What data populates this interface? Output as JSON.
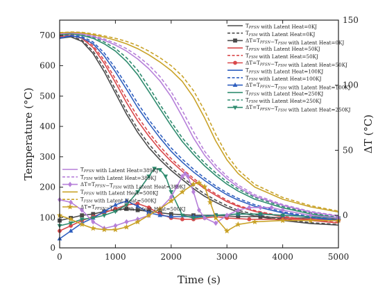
{
  "chart_data": {
    "type": "line",
    "xlabel": "Time (s)",
    "ylabel": "Temperature (°C)",
    "y2label": "ΔT (°C)",
    "xlim": [
      0,
      5000
    ],
    "ylim": [
      0,
      750
    ],
    "y2lim": [
      -25,
      150
    ],
    "xticks": [
      0,
      1000,
      2000,
      3000,
      4000,
      5000
    ],
    "yticks": [
      0,
      100,
      200,
      300,
      400,
      500,
      600,
      700
    ],
    "y2ticks": [
      0,
      50,
      100,
      150
    ],
    "grid": false,
    "legend_positions": [
      "top-right",
      "left-middle"
    ],
    "series": [
      {
        "name": "T_PFSN with Latent Heat=0KJ",
        "axis": "left",
        "style": "solid",
        "marker": "none",
        "color": "#4a4a4a",
        "x": [
          0,
          200,
          400,
          600,
          800,
          1000,
          1200,
          1400,
          1600,
          1800,
          2000,
          2200,
          2400,
          2600,
          2800,
          3000,
          3200,
          3500,
          4000,
          4500,
          5000
        ],
        "y": [
          690,
          695,
          680,
          640,
          580,
          510,
          440,
          380,
          330,
          290,
          255,
          225,
          195,
          170,
          150,
          132,
          118,
          105,
          90,
          80,
          75
        ]
      },
      {
        "name": "T_FSM with Latent Heat=0KJ",
        "axis": "left",
        "style": "dash",
        "marker": "none",
        "color": "#4a4a4a",
        "x": [
          0,
          200,
          400,
          600,
          800,
          1000,
          1200,
          1400,
          1600,
          1800,
          2000,
          2200,
          2400,
          2600,
          2800,
          3000,
          3200,
          3500,
          4000,
          4500,
          5000
        ],
        "y": [
          692,
          697,
          684,
          648,
          592,
          522,
          452,
          392,
          342,
          300,
          264,
          233,
          203,
          178,
          157,
          139,
          124,
          110,
          94,
          83,
          77
        ]
      },
      {
        "name": "ΔT=T_PFSN−T_FSM with Latent Heat=0KJ",
        "axis": "right",
        "style": "solid",
        "marker": "square",
        "color": "#4a4a4a",
        "x": [
          0,
          200,
          400,
          600,
          800,
          1000,
          1200,
          1400,
          1600,
          1800,
          2000,
          2400,
          2800,
          3200,
          3600,
          4000,
          4500,
          5000
        ],
        "y": [
          -4,
          -2,
          0,
          1,
          3,
          4,
          5,
          4,
          3,
          2,
          1,
          0,
          0,
          -1,
          -1,
          -2,
          -2,
          -3
        ]
      },
      {
        "name": "T_PFSN with Latent Heat=50KJ",
        "axis": "left",
        "style": "solid",
        "marker": "none",
        "color": "#d9484a",
        "x": [
          0,
          200,
          400,
          600,
          800,
          1000,
          1200,
          1400,
          1600,
          1800,
          2000,
          2200,
          2400,
          2600,
          2800,
          3000,
          3200,
          3500,
          4000,
          4500,
          5000
        ],
        "y": [
          695,
          700,
          690,
          660,
          608,
          545,
          478,
          418,
          368,
          323,
          285,
          252,
          222,
          195,
          173,
          152,
          137,
          120,
          102,
          90,
          82
        ]
      },
      {
        "name": "T_FSM with Latent Heat=50KJ",
        "axis": "left",
        "style": "dash",
        "marker": "none",
        "color": "#d9484a",
        "x": [
          0,
          200,
          400,
          600,
          800,
          1000,
          1200,
          1400,
          1600,
          1800,
          2000,
          2200,
          2400,
          2600,
          2800,
          3000,
          3200,
          3500,
          4000,
          4500,
          5000
        ],
        "y": [
          697,
          702,
          694,
          666,
          618,
          557,
          492,
          432,
          380,
          334,
          294,
          260,
          229,
          201,
          178,
          157,
          140,
          123,
          104,
          92,
          84
        ]
      },
      {
        "name": "ΔT=T_PFSN−T_FSM with Latent Heat=50KJ",
        "axis": "right",
        "style": "solid",
        "marker": "circle",
        "color": "#d9484a",
        "x": [
          0,
          200,
          400,
          600,
          800,
          1000,
          1200,
          1400,
          1600,
          1800,
          2000,
          2200,
          2400,
          2600,
          2800,
          3000,
          3400,
          4000,
          4500,
          5000
        ],
        "y": [
          -12,
          -8,
          -4,
          -1,
          2,
          5,
          8,
          9,
          6,
          1,
          -2,
          -3,
          -3,
          -2,
          -1,
          -2,
          -3,
          -3,
          -3,
          -4
        ]
      },
      {
        "name": "T_PFSN with Latent Heat=100KJ",
        "axis": "left",
        "style": "solid",
        "marker": "none",
        "color": "#2f5fbf",
        "x": [
          0,
          200,
          400,
          600,
          800,
          1000,
          1200,
          1400,
          1600,
          1800,
          2000,
          2200,
          2400,
          2600,
          2800,
          3000,
          3200,
          3500,
          4000,
          4500,
          5000
        ],
        "y": [
          690,
          698,
          692,
          672,
          632,
          580,
          522,
          462,
          410,
          362,
          318,
          282,
          250,
          222,
          197,
          175,
          157,
          137,
          115,
          100,
          90
        ]
      },
      {
        "name": "T_FSM with Latent Heat=100KJ",
        "axis": "left",
        "style": "dash",
        "marker": "none",
        "color": "#2f5fbf",
        "x": [
          0,
          200,
          400,
          600,
          800,
          1000,
          1200,
          1400,
          1600,
          1800,
          2000,
          2200,
          2400,
          2600,
          2800,
          3000,
          3200,
          3500,
          4000,
          4500,
          5000
        ],
        "y": [
          692,
          700,
          696,
          678,
          642,
          592,
          536,
          476,
          422,
          374,
          329,
          292,
          259,
          230,
          204,
          181,
          163,
          142,
          119,
          103,
          92
        ]
      },
      {
        "name": "ΔT=T_PFSN−T_FSM with Latent Heat=100KJ",
        "axis": "right",
        "style": "solid",
        "marker": "triangle",
        "color": "#2f5fbf",
        "x": [
          0,
          200,
          400,
          600,
          800,
          1000,
          1200,
          1400,
          1600,
          1800,
          2000,
          2400,
          2800,
          3200,
          3600,
          4000,
          4500,
          5000
        ],
        "y": [
          -18,
          -12,
          -6,
          -2,
          3,
          8,
          11,
          7,
          2,
          0,
          -1,
          -1,
          0,
          1,
          1,
          0,
          -1,
          -2
        ]
      },
      {
        "name": "T_PFSN with Latent Heat=250KJ",
        "axis": "left",
        "style": "solid",
        "marker": "none",
        "color": "#2e8b6e",
        "x": [
          0,
          200,
          400,
          600,
          800,
          1000,
          1200,
          1400,
          1600,
          1800,
          2000,
          2200,
          2400,
          2600,
          2800,
          3000,
          3200,
          3500,
          4000,
          4500,
          5000
        ],
        "y": [
          700,
          705,
          700,
          690,
          672,
          648,
          614,
          570,
          515,
          458,
          402,
          350,
          308,
          270,
          238,
          210,
          187,
          160,
          132,
          112,
          98
        ]
      },
      {
        "name": "T_FSM with Latent Heat=250KJ",
        "axis": "left",
        "style": "dash",
        "marker": "none",
        "color": "#2e8b6e",
        "x": [
          0,
          200,
          400,
          600,
          800,
          1000,
          1200,
          1400,
          1600,
          1800,
          2000,
          2200,
          2400,
          2600,
          2800,
          3000,
          3200,
          3500,
          4000,
          4500,
          5000
        ],
        "y": [
          701,
          706,
          702,
          694,
          678,
          657,
          626,
          585,
          530,
          472,
          415,
          362,
          319,
          280,
          247,
          218,
          194,
          166,
          136,
          115,
          100
        ]
      },
      {
        "name": "ΔT=T_PFSN−T_FSM with Latent Heat=250KJ",
        "axis": "right",
        "style": "solid",
        "marker": "triangle-down",
        "color": "#2e8b6e",
        "x": [
          0,
          200,
          400,
          600,
          800,
          1000,
          1200,
          1400,
          1600,
          1700,
          1800,
          1900,
          2000,
          2200,
          2400,
          2600,
          2800,
          3200,
          3600,
          4000,
          4500,
          5000
        ],
        "y": [
          -8,
          -6,
          -3,
          -2,
          0,
          3,
          8,
          18,
          30,
          36,
          35,
          30,
          18,
          0,
          -2,
          -1,
          0,
          1,
          1,
          0,
          -1,
          -2
        ]
      },
      {
        "name": "T_PFSN with Latent Heat=389KJ",
        "axis": "left",
        "style": "solid",
        "marker": "none",
        "color": "#b67fd9",
        "x": [
          0,
          200,
          400,
          600,
          800,
          1000,
          1200,
          1400,
          1600,
          1800,
          2000,
          2200,
          2400,
          2600,
          2800,
          3000,
          3200,
          3500,
          4000,
          4500,
          5000
        ],
        "y": [
          705,
          708,
          704,
          696,
          684,
          668,
          648,
          622,
          590,
          550,
          498,
          432,
          362,
          305,
          262,
          228,
          200,
          170,
          140,
          118,
          104
        ]
      },
      {
        "name": "T_FSM with Latent Heat=389KJ",
        "axis": "left",
        "style": "dash",
        "marker": "none",
        "color": "#b67fd9",
        "x": [
          0,
          200,
          400,
          600,
          800,
          1000,
          1200,
          1400,
          1600,
          1800,
          2000,
          2200,
          2400,
          2600,
          2800,
          3000,
          3200,
          3500,
          4000,
          4500,
          5000
        ],
        "y": [
          706,
          709,
          706,
          699,
          688,
          674,
          656,
          632,
          602,
          564,
          514,
          452,
          382,
          318,
          272,
          236,
          207,
          175,
          143,
          120,
          106
        ]
      },
      {
        "name": "ΔT=T_PFSN−T_FSM with Latent Heat=389KJ",
        "axis": "right",
        "style": "solid",
        "marker": "diamond",
        "color": "#b67fd9",
        "x": [
          0,
          200,
          400,
          600,
          800,
          1000,
          1200,
          1400,
          1600,
          1800,
          2000,
          2100,
          2200,
          2250,
          2300,
          2400,
          2500,
          2600,
          2800,
          3000,
          3200,
          3400,
          3600,
          3800,
          4000,
          4500,
          5000
        ],
        "y": [
          12,
          10,
          4,
          -5,
          -10,
          -8,
          -5,
          -3,
          0,
          5,
          14,
          22,
          30,
          32,
          30,
          18,
          4,
          -2,
          -6,
          0,
          4,
          6,
          6,
          6,
          4,
          0,
          -2
        ]
      },
      {
        "name": "T_PFSN with Latent Heat=500KJ",
        "axis": "left",
        "style": "solid",
        "marker": "none",
        "color": "#c9a227",
        "x": [
          0,
          200,
          400,
          600,
          800,
          1000,
          1200,
          1400,
          1600,
          1800,
          2000,
          2200,
          2400,
          2600,
          2800,
          3000,
          3200,
          3500,
          4000,
          4500,
          5000
        ],
        "y": [
          708,
          710,
          708,
          702,
          694,
          684,
          672,
          656,
          636,
          612,
          584,
          548,
          496,
          428,
          352,
          290,
          245,
          200,
          160,
          135,
          118
        ]
      },
      {
        "name": "T_FSM with Latent Heat=500KJ",
        "axis": "left",
        "style": "dash",
        "marker": "none",
        "color": "#c9a227",
        "x": [
          0,
          200,
          400,
          600,
          800,
          1000,
          1200,
          1400,
          1600,
          1800,
          2000,
          2200,
          2400,
          2600,
          2800,
          3000,
          3200,
          3500,
          4000,
          4500,
          5000
        ],
        "y": [
          709,
          711,
          710,
          705,
          698,
          690,
          680,
          666,
          648,
          626,
          600,
          566,
          518,
          452,
          374,
          306,
          257,
          209,
          166,
          139,
          121
        ]
      },
      {
        "name": "ΔT=T_PFSN−T_FSM with Latent Heat=500KJ",
        "axis": "right",
        "style": "solid",
        "marker": "star",
        "color": "#c9a227",
        "x": [
          0,
          200,
          400,
          600,
          800,
          1000,
          1200,
          1400,
          1600,
          1800,
          2000,
          2200,
          2400,
          2500,
          2600,
          2700,
          2800,
          3000,
          3200,
          3500,
          4000,
          4500,
          5000
        ],
        "y": [
          0,
          -3,
          -7,
          -10,
          -11,
          -11,
          -9,
          -5,
          0,
          5,
          11,
          18,
          24,
          25,
          22,
          10,
          -2,
          -12,
          -7,
          -5,
          -4,
          -4,
          -4
        ]
      }
    ]
  },
  "legend_top": [
    {
      "pre": "T",
      "sub": "PFSN",
      "post": " with Latent Heat=0KJ",
      "color": "#4a4a4a",
      "style": "solid",
      "marker": "none"
    },
    {
      "pre": "T",
      "sub": "FSM",
      "post": " with Latent Heat=0KJ",
      "color": "#4a4a4a",
      "style": "dash",
      "marker": "none"
    },
    {
      "pre": "ΔT=T",
      "sub": "PFSN",
      "mid": "−T",
      "sub2": "FSM",
      "post": " with Latent Heat=0KJ",
      "color": "#4a4a4a",
      "style": "solid",
      "marker": "square"
    },
    {
      "pre": "T",
      "sub": "PFSN",
      "post": " with Latent Heat=50KJ",
      "color": "#d9484a",
      "style": "solid",
      "marker": "none"
    },
    {
      "pre": "T",
      "sub": "FSM",
      "post": " with Latent Heat=50KJ",
      "color": "#d9484a",
      "style": "dash",
      "marker": "none"
    },
    {
      "pre": "ΔT=T",
      "sub": "PFSN",
      "mid": "−T",
      "sub2": "FSM",
      "post": " with Latent Heat=50KJ",
      "color": "#d9484a",
      "style": "solid",
      "marker": "circle"
    },
    {
      "pre": "T",
      "sub": "PFSN",
      "post": " with Latent Heat=100KJ",
      "color": "#2f5fbf",
      "style": "solid",
      "marker": "none"
    },
    {
      "pre": "T",
      "sub": "FSM",
      "post": " with Latent Heat=100KJ",
      "color": "#2f5fbf",
      "style": "dash",
      "marker": "none"
    },
    {
      "pre": "ΔT=T",
      "sub": "PFSN",
      "mid": "−T",
      "sub2": "FSM",
      "post": " with Latent Heat=100KJ",
      "color": "#2f5fbf",
      "style": "solid",
      "marker": "triangle"
    },
    {
      "pre": "T",
      "sub": "PFSN",
      "post": " with Latent Heat=250KJ",
      "color": "#2e8b6e",
      "style": "solid",
      "marker": "none"
    },
    {
      "pre": "T",
      "sub": "FSM",
      "post": " with Latent Heat=250KJ",
      "color": "#2e8b6e",
      "style": "dash",
      "marker": "none"
    },
    {
      "pre": "ΔT=T",
      "sub": "PFSN",
      "mid": "−T",
      "sub2": "FSM",
      "post": " with Latent Heat=250KJ",
      "color": "#2e8b6e",
      "style": "solid",
      "marker": "triangle-down"
    }
  ],
  "legend_left": [
    {
      "pre": "T",
      "sub": "PFSN",
      "post": " with Latent Heat=389KJ",
      "color": "#b67fd9",
      "style": "solid",
      "marker": "none"
    },
    {
      "pre": "T",
      "sub": "FSM",
      "post": " with Latent Heat=389KJ",
      "color": "#b67fd9",
      "style": "dash",
      "marker": "none"
    },
    {
      "pre": "ΔT=T",
      "sub": "PFSN",
      "mid": "−T",
      "sub2": "FSM",
      "post": " with Latent Heat=389KJ",
      "color": "#b67fd9",
      "style": "solid",
      "marker": "diamond"
    },
    {
      "pre": "T",
      "sub": "PFSN",
      "post": " with Latent Heat=500KJ",
      "color": "#c9a227",
      "style": "solid",
      "marker": "none"
    },
    {
      "pre": "T",
      "sub": "FSM",
      "post": " with Latent Heat=500KJ",
      "color": "#c9a227",
      "style": "dash",
      "marker": "none"
    },
    {
      "pre": "ΔT=T",
      "sub": "PFSN",
      "mid": "−T",
      "sub2": "FSM",
      "post": " with Latent Heat=500KJ",
      "color": "#c9a227",
      "style": "solid",
      "marker": "star"
    }
  ]
}
